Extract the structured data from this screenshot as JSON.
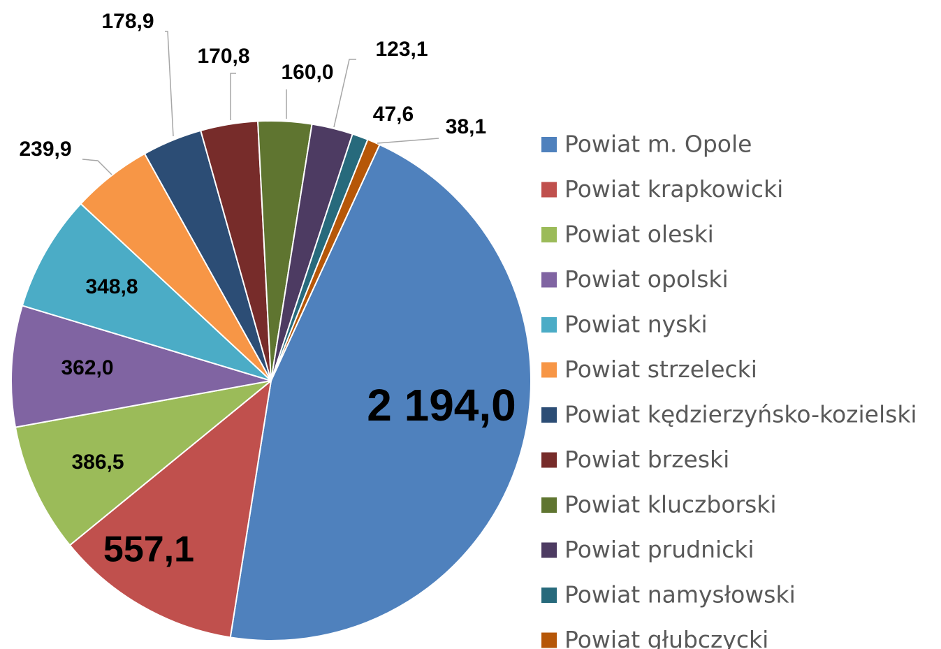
{
  "chart_data": {
    "type": "pie",
    "categories": [
      "Powiat m. Opole",
      "Powiat krapkowicki",
      "Powiat oleski",
      "Powiat opolski",
      "Powiat nyski",
      "Powiat strzelecki",
      "Powiat kędzierzyńsko-kozielski",
      "Powiat brzeski",
      "Powiat kluczborski",
      "Powiat prudnicki",
      "Powiat namysłowski",
      "Powiat głubczycki"
    ],
    "values": [
      2194.0,
      557.1,
      386.5,
      362.0,
      348.8,
      239.9,
      178.9,
      170.8,
      160.0,
      123.1,
      47.6,
      38.1
    ],
    "value_labels": [
      "2 194,0",
      "557,1",
      "386,5",
      "362,0",
      "348,8",
      "239,9",
      "178,9",
      "170,8",
      "160,0",
      "123,1",
      "47,6",
      "38,1"
    ],
    "colors": [
      "#4f81bd",
      "#c0504d",
      "#9bbb59",
      "#8064a2",
      "#4bacc6",
      "#f79646",
      "#2c4d75",
      "#772c2a",
      "#5f7530",
      "#4d3b62",
      "#276a7c",
      "#b65708"
    ],
    "legend": "right"
  }
}
